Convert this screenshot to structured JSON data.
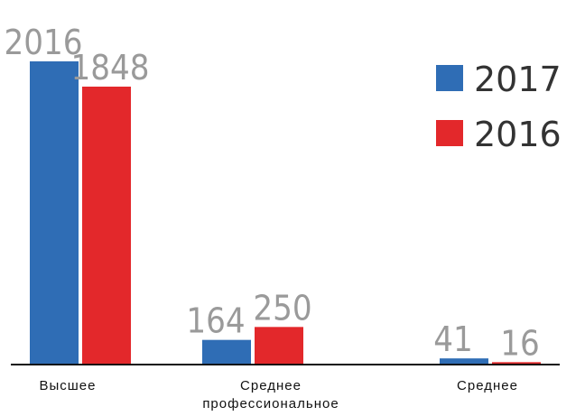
{
  "chart_data": {
    "type": "bar",
    "categories": [
      "Высшее",
      "Среднее профессиональное",
      "Среднее"
    ],
    "series": [
      {
        "name": "2017",
        "color": "#2f6db5",
        "values": [
          2016,
          164,
          41
        ]
      },
      {
        "name": "2016",
        "color": "#e3282b",
        "values": [
          1848,
          250,
          16
        ]
      }
    ],
    "legend": "top-right"
  }
}
